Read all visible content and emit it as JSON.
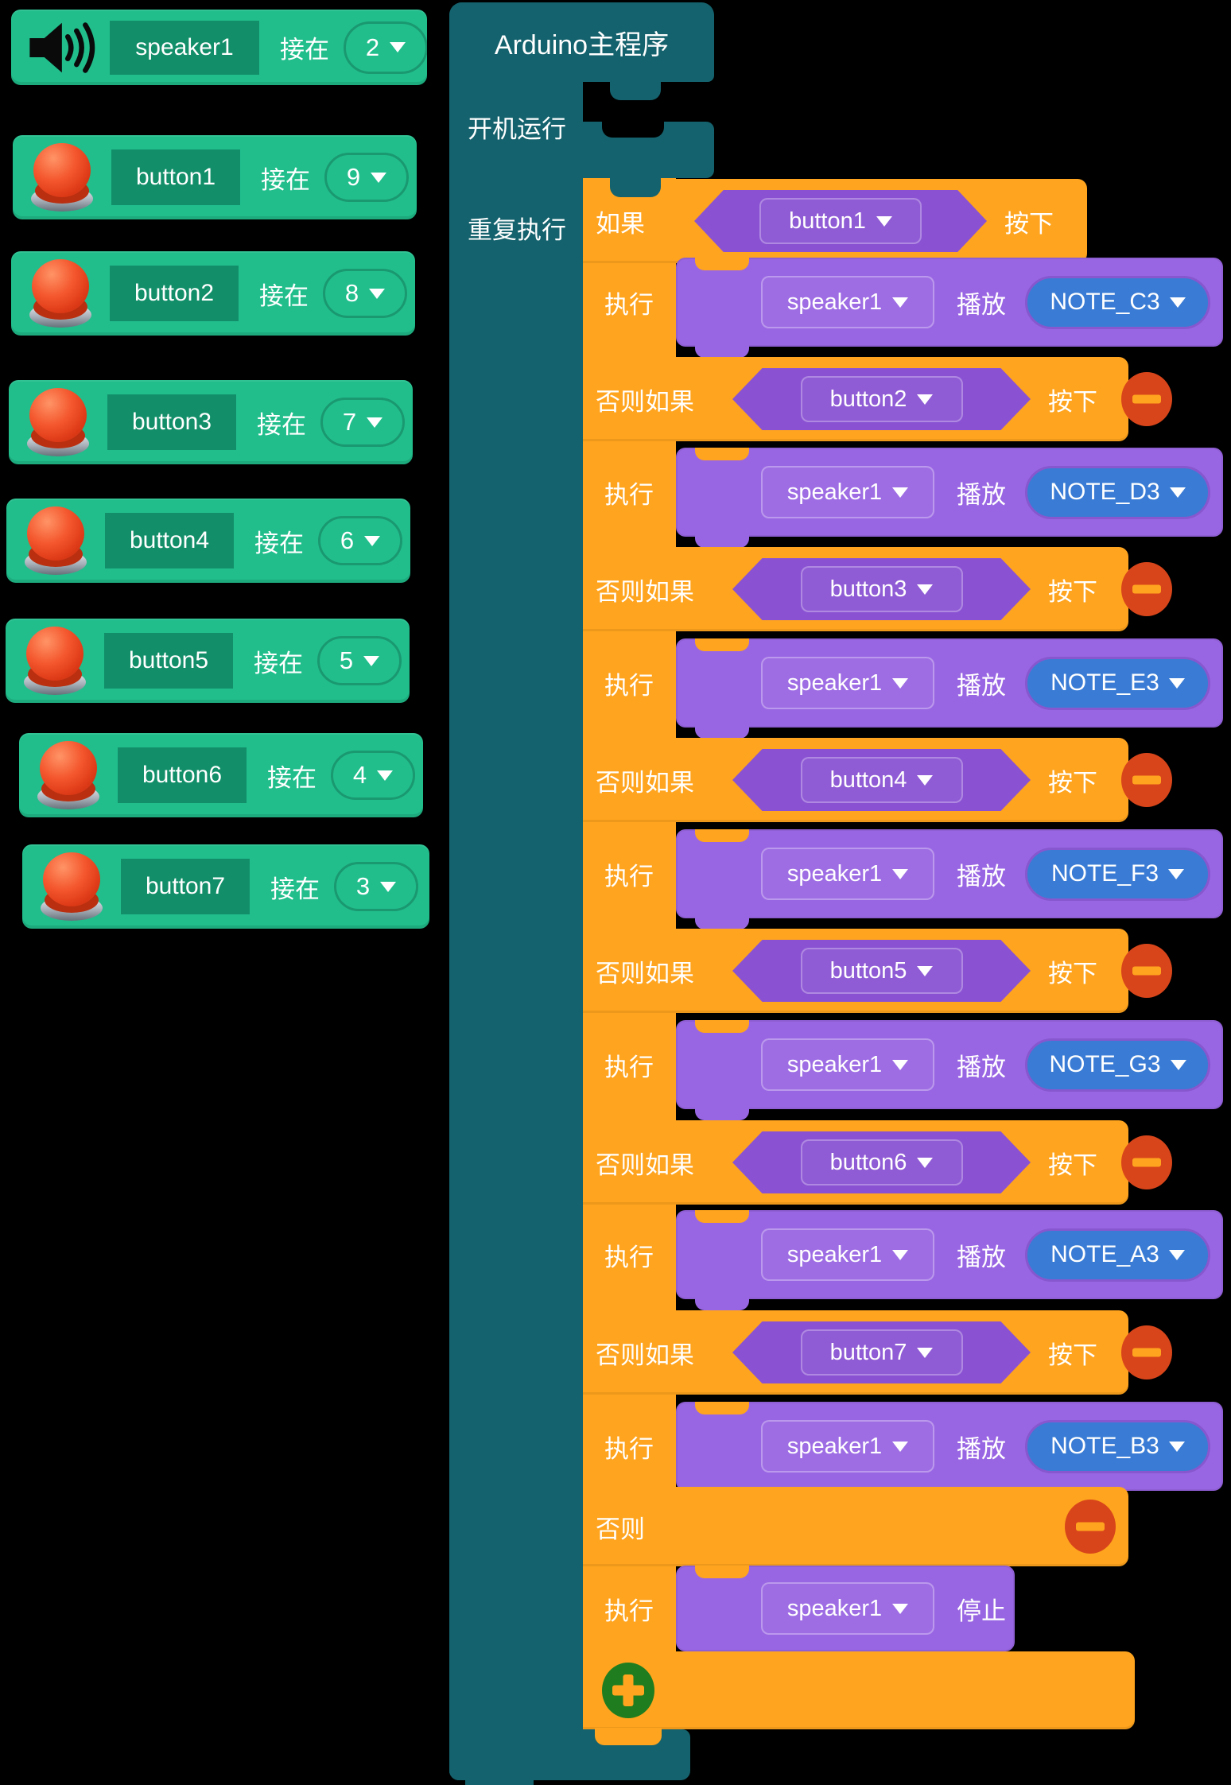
{
  "colors": {
    "device_block_green": "#21BE8C",
    "device_name_box_green": "#128F69",
    "program_teal": "#14626D",
    "if_block_orange": "#FFA41E",
    "statement_purple": "#9966E3",
    "condition_hex_purple": "#8A52D3",
    "note_pill_blue": "#3A7CD5",
    "remove_button_red": "#D8451A",
    "add_button_green": "#1F7D1F",
    "text_white": "#FFFFFF"
  },
  "device_blocks": [
    {
      "icon": "speaker-icon",
      "name": "speaker1",
      "port_label": "接在",
      "pin": "2"
    },
    {
      "icon": "push-button-icon",
      "name": "button1",
      "port_label": "接在",
      "pin": "9"
    },
    {
      "icon": "push-button-icon",
      "name": "button2",
      "port_label": "接在",
      "pin": "8"
    },
    {
      "icon": "push-button-icon",
      "name": "button3",
      "port_label": "接在",
      "pin": "7"
    },
    {
      "icon": "push-button-icon",
      "name": "button4",
      "port_label": "接在",
      "pin": "6"
    },
    {
      "icon": "push-button-icon",
      "name": "button5",
      "port_label": "接在",
      "pin": "5"
    },
    {
      "icon": "push-button-icon",
      "name": "button6",
      "port_label": "接在",
      "pin": "4"
    },
    {
      "icon": "push-button-icon",
      "name": "button7",
      "port_label": "接在",
      "pin": "3"
    }
  ],
  "main_program": {
    "title": "Arduino主程序",
    "setup_label": "开机运行",
    "loop_label": "重复执行"
  },
  "if_block": {
    "if_label": "如果",
    "elseif_label": "否则如果",
    "else_label": "否则",
    "do_label": "执行",
    "pressed_label": "按下",
    "play_label": "播放",
    "stop_label": "停止",
    "speaker": "speaker1",
    "branches": [
      {
        "button": "button1",
        "note": "NOTE_C3"
      },
      {
        "button": "button2",
        "note": "NOTE_D3"
      },
      {
        "button": "button3",
        "note": "NOTE_E3"
      },
      {
        "button": "button4",
        "note": "NOTE_F3"
      },
      {
        "button": "button5",
        "note": "NOTE_G3"
      },
      {
        "button": "button6",
        "note": "NOTE_A3"
      },
      {
        "button": "button7",
        "note": "NOTE_B3"
      }
    ]
  }
}
